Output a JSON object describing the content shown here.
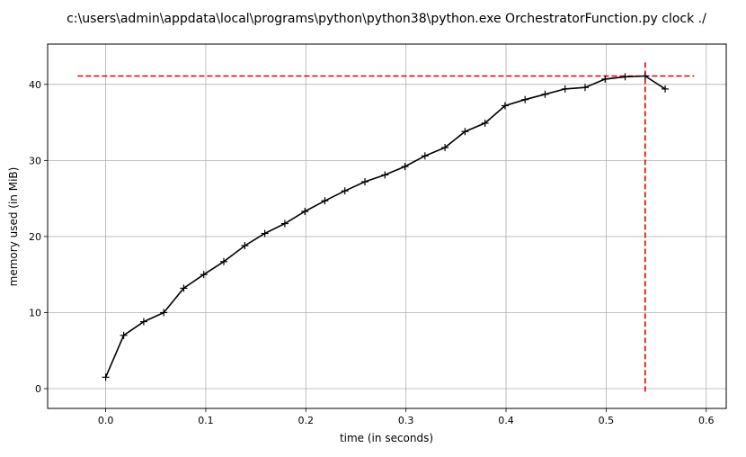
{
  "chart_data": {
    "type": "line",
    "title": "c:\\users\\admin\\appdata\\local\\programs\\python\\python38\\python.exe OrchestratorFunction.py clock ./",
    "xlabel": "time (in seconds)",
    "ylabel": "memory used (in MiB)",
    "xlim": [
      -0.058,
      0.62
    ],
    "ylim": [
      -2.6,
      45.3
    ],
    "xticks": [
      0.0,
      0.1,
      0.2,
      0.3,
      0.4,
      0.5,
      0.6
    ],
    "xtick_labels": [
      "0.0",
      "0.1",
      "0.2",
      "0.3",
      "0.4",
      "0.5",
      "0.6"
    ],
    "yticks": [
      0,
      10,
      20,
      30,
      40
    ],
    "ytick_labels": [
      "0",
      "10",
      "20",
      "30",
      "40"
    ],
    "grid": true,
    "series": [
      {
        "color": "#000000",
        "marker": "+",
        "x": [
          0.0,
          0.018,
          0.038,
          0.058,
          0.078,
          0.098,
          0.118,
          0.139,
          0.159,
          0.179,
          0.199,
          0.219,
          0.239,
          0.259,
          0.279,
          0.299,
          0.319,
          0.339,
          0.359,
          0.379,
          0.399,
          0.419,
          0.439,
          0.459,
          0.479,
          0.499,
          0.519,
          0.539,
          0.559
        ],
        "y": [
          1.5,
          7.0,
          8.8,
          10.0,
          13.2,
          15.0,
          16.7,
          18.8,
          20.4,
          21.7,
          23.3,
          24.7,
          26.0,
          27.2,
          28.1,
          29.2,
          30.6,
          31.7,
          33.8,
          34.9,
          37.2,
          38.0,
          38.7,
          39.4,
          39.6,
          40.7,
          41.0,
          41.1,
          39.4
        ]
      }
    ],
    "reference_lines": [
      {
        "orientation": "horizontal",
        "y": 41.1,
        "x_from": -0.028,
        "x_to": 0.588,
        "color": "#e00000",
        "style": "dashed"
      },
      {
        "orientation": "vertical",
        "x": 0.539,
        "y_from": -0.4,
        "y_to": 43.0,
        "color": "#e00000",
        "style": "dashed"
      }
    ]
  }
}
